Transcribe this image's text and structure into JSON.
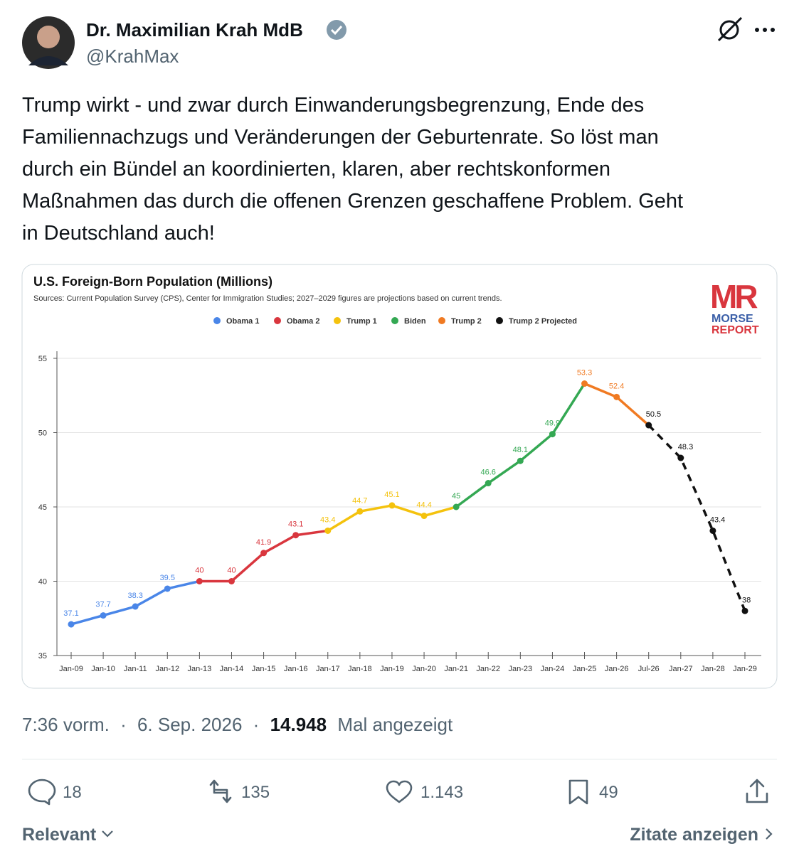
{
  "tweet": {
    "author": {
      "name": "Dr. Maximilian Krah MdB",
      "handle": "@KrahMax"
    },
    "text_lines": [
      "Trump wirkt - und zwar durch Einwanderungsbegrenzung, Ende des",
      "Familiennachzugs und Veränderungen der Geburtenrate. So löst man",
      "durch ein Bündel an koordinierten, klaren, aber rechtskonformen",
      "Maßnahmen das durch die offenen Grenzen geschaffene Problem. Geht",
      "in Deutschland auch!"
    ],
    "time": "7:36 vorm.",
    "separator": "·",
    "date": "6. Sep. 2026",
    "views": "14.948",
    "views_label": "Mal angezeigt",
    "replies": 18,
    "reposts": 135,
    "likes": "1.143",
    "bookmarks": 49,
    "sort": "Relevant",
    "quotes_link": "Zitate anzeigen"
  },
  "chart_data": {
    "type": "line",
    "title": "U.S. Foreign-Born Population (Millions)",
    "subtitle": "Sources: Current Population Survey (CPS), Center for Immigration Studies; 2027–2029 figures are projections based on current trends.",
    "logo": {
      "mark": "MR",
      "line1": "MORSE",
      "line2": "REPORT"
    },
    "categories": [
      "Jan-09",
      "Jan-10",
      "Jan-11",
      "Jan-12",
      "Jan-13",
      "Jan-14",
      "Jan-15",
      "Jan-16",
      "Jan-17",
      "Jan-18",
      "Jan-19",
      "Jan-20",
      "Jan-21",
      "Jan-22",
      "Jan-23",
      "Jan-24",
      "Jan-25",
      "Jan-26",
      "Jul-26",
      "Jan-27",
      "Jan-28",
      "Jan-29"
    ],
    "series": [
      {
        "name": "Obama 1",
        "color": "#4a86e8",
        "values": [
          37.1,
          37.7,
          38.3,
          39.5,
          null,
          null,
          null,
          null,
          null,
          null,
          null,
          null,
          null,
          null,
          null,
          null,
          null,
          null,
          null,
          null,
          null,
          null
        ]
      },
      {
        "name": "Obama 2",
        "color": "#d9363e",
        "values": [
          null,
          null,
          null,
          null,
          40,
          40,
          41.9,
          43.1,
          null,
          null,
          null,
          null,
          null,
          null,
          null,
          null,
          null,
          null,
          null,
          null,
          null,
          null
        ]
      },
      {
        "name": "Trump 1",
        "color": "#f4c20d",
        "values": [
          null,
          null,
          null,
          null,
          null,
          null,
          null,
          null,
          43.4,
          44.7,
          45.1,
          44.4,
          null,
          null,
          null,
          null,
          null,
          null,
          null,
          null,
          null,
          null
        ]
      },
      {
        "name": "Biden",
        "color": "#34a853",
        "values": [
          null,
          null,
          null,
          null,
          null,
          null,
          null,
          null,
          null,
          null,
          null,
          null,
          45,
          46.6,
          48.1,
          49.9,
          null,
          null,
          null,
          null,
          null,
          null
        ]
      },
      {
        "name": "Trump 2",
        "color": "#f07a22",
        "values": [
          null,
          null,
          null,
          null,
          null,
          null,
          null,
          null,
          null,
          null,
          null,
          null,
          null,
          null,
          null,
          null,
          53.3,
          52.4,
          null,
          null,
          null,
          null
        ]
      },
      {
        "name": "Trump 2 Projected",
        "color": "#111111",
        "line_style": "dashed",
        "values": [
          null,
          null,
          null,
          null,
          null,
          null,
          null,
          null,
          null,
          null,
          null,
          null,
          null,
          null,
          null,
          null,
          null,
          null,
          50.5,
          48.3,
          43.4,
          38
        ]
      }
    ],
    "ylim": [
      35,
      55
    ],
    "yticks": [
      35,
      40,
      45,
      50,
      55
    ],
    "grid": true,
    "legend": "top"
  }
}
